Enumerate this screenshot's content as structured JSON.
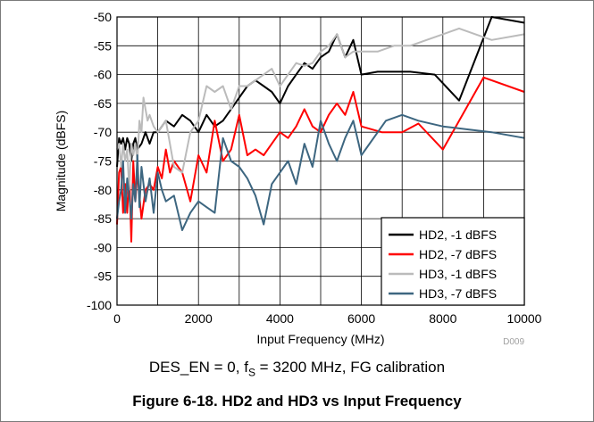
{
  "caption": {
    "prefix": "DES_EN = 0, f",
    "subscript": "S",
    "suffix": " = 3200 MHz, FG calibration"
  },
  "figure_title": "Figure 6-18. HD2 and HD3 vs Input Frequency",
  "code": "D009",
  "chart_data": {
    "type": "line",
    "xlabel": "Input Frequency (MHz)",
    "ylabel": "Magnitude (dBFS)",
    "xlim": [
      0,
      10000
    ],
    "ylim": [
      -100,
      -50
    ],
    "xticks": [
      0,
      2000,
      4000,
      6000,
      8000,
      10000
    ],
    "yticks": [
      -50,
      -55,
      -60,
      -65,
      -70,
      -75,
      -80,
      -85,
      -90,
      -95,
      -100
    ],
    "grid": true,
    "legend_position": "bottom-right",
    "series": [
      {
        "name": "HD2, -1 dBFS",
        "color": "#000000",
        "x": [
          0,
          50,
          100,
          150,
          200,
          250,
          300,
          350,
          400,
          450,
          500,
          600,
          700,
          800,
          900,
          1000,
          1100,
          1200,
          1400,
          1600,
          1800,
          2000,
          2200,
          2400,
          2600,
          2800,
          3000,
          3200,
          3400,
          3600,
          3800,
          4000,
          4200,
          4400,
          4600,
          4800,
          5000,
          5200,
          5400,
          5600,
          5800,
          6000,
          6400,
          6800,
          7200,
          7800,
          8400,
          9200,
          10000
        ],
        "values": [
          -76,
          -71,
          -72,
          -71,
          -73,
          -71,
          -72,
          -75,
          -72,
          -71,
          -73,
          -72,
          -70,
          -72,
          -70,
          -70,
          -69,
          -68,
          -69,
          -67,
          -68,
          -70,
          -67,
          -69,
          -68,
          -66,
          -64,
          -62,
          -61,
          -62,
          -63,
          -65,
          -62,
          -60,
          -58,
          -59,
          -57,
          -56,
          -53,
          -57,
          -54,
          -60,
          -59.5,
          -59.5,
          -59.5,
          -60,
          -64.5,
          -50,
          -51
        ]
      },
      {
        "name": "HD2, -7 dBFS",
        "color": "#ff0000",
        "x": [
          0,
          50,
          100,
          150,
          200,
          250,
          300,
          350,
          400,
          450,
          500,
          600,
          700,
          800,
          900,
          1000,
          1100,
          1200,
          1300,
          1400,
          1600,
          1800,
          2000,
          2200,
          2400,
          2600,
          2800,
          3000,
          3200,
          3400,
          3600,
          3800,
          4000,
          4200,
          4400,
          4600,
          4800,
          5000,
          5200,
          5400,
          5600,
          5800,
          6000,
          6500,
          7000,
          7400,
          8000,
          9000,
          10000
        ],
        "values": [
          -86,
          -77,
          -76,
          -84,
          -79,
          -84,
          -77,
          -89,
          -75,
          -82,
          -77,
          -85,
          -80,
          -79,
          -80,
          -76,
          -78,
          -73,
          -77,
          -75,
          -77,
          -82,
          -74,
          -77,
          -68,
          -75,
          -73,
          -67,
          -74,
          -73,
          -74,
          -72,
          -70,
          -71,
          -69,
          -66,
          -69,
          -70,
          -67,
          -65,
          -67,
          -63,
          -69,
          -70,
          -70,
          -68.5,
          -73,
          -60.5,
          -63
        ]
      },
      {
        "name": "HD3, -1 dBFS",
        "color": "#bbbbbb",
        "x": [
          0,
          50,
          100,
          150,
          200,
          250,
          300,
          350,
          400,
          450,
          500,
          550,
          600,
          650,
          700,
          750,
          800,
          900,
          1000,
          1100,
          1200,
          1400,
          1600,
          1800,
          2000,
          2200,
          2400,
          2600,
          2800,
          3000,
          3200,
          3400,
          3600,
          3800,
          4000,
          4200,
          4400,
          4600,
          4800,
          5000,
          5200,
          5400,
          5600,
          5800,
          6000,
          6400,
          6800,
          7200,
          7600,
          8000,
          8400,
          8800,
          9200,
          10000
        ],
        "values": [
          -73,
          -72,
          -76,
          -72,
          -75,
          -73,
          -80,
          -72,
          -74,
          -72,
          -75,
          -68,
          -70,
          -64,
          -66,
          -68,
          -67,
          -69,
          -70,
          -69,
          -68,
          -76,
          -77,
          -70,
          -68,
          -62,
          -63,
          -62,
          -66,
          -62,
          -62,
          -61,
          -60,
          -59,
          -62,
          -60,
          -58,
          -58.5,
          -58,
          -56,
          -55,
          -53,
          -57,
          -56,
          -56,
          -56,
          -55,
          -55,
          -54,
          -53,
          -52,
          -53,
          -54,
          -53
        ]
      },
      {
        "name": "HD3, -7 dBFS",
        "color": "#3d6680",
        "x": [
          0,
          50,
          100,
          150,
          200,
          250,
          300,
          350,
          400,
          450,
          500,
          550,
          600,
          700,
          800,
          900,
          1000,
          1100,
          1200,
          1400,
          1600,
          1800,
          2000,
          2200,
          2400,
          2600,
          2800,
          3000,
          3200,
          3400,
          3600,
          3800,
          4000,
          4200,
          4400,
          4600,
          4800,
          5000,
          5200,
          5400,
          5600,
          5800,
          6000,
          6600,
          7000,
          7400,
          8000,
          8600,
          9200,
          10000
        ],
        "values": [
          -85,
          -82,
          -80,
          -75,
          -84,
          -78,
          -81,
          -85,
          -79,
          -82,
          -74,
          -83,
          -76,
          -82,
          -78,
          -84,
          -77,
          -80,
          -82,
          -81,
          -87,
          -84,
          -82,
          -83,
          -84,
          -71,
          -75,
          -76,
          -78,
          -81,
          -86,
          -79,
          -77,
          -75,
          -79,
          -72,
          -76,
          -68,
          -72,
          -75,
          -71,
          -68,
          -74,
          -68,
          -67,
          -68,
          -69,
          -69.5,
          -70,
          -71
        ]
      }
    ]
  }
}
